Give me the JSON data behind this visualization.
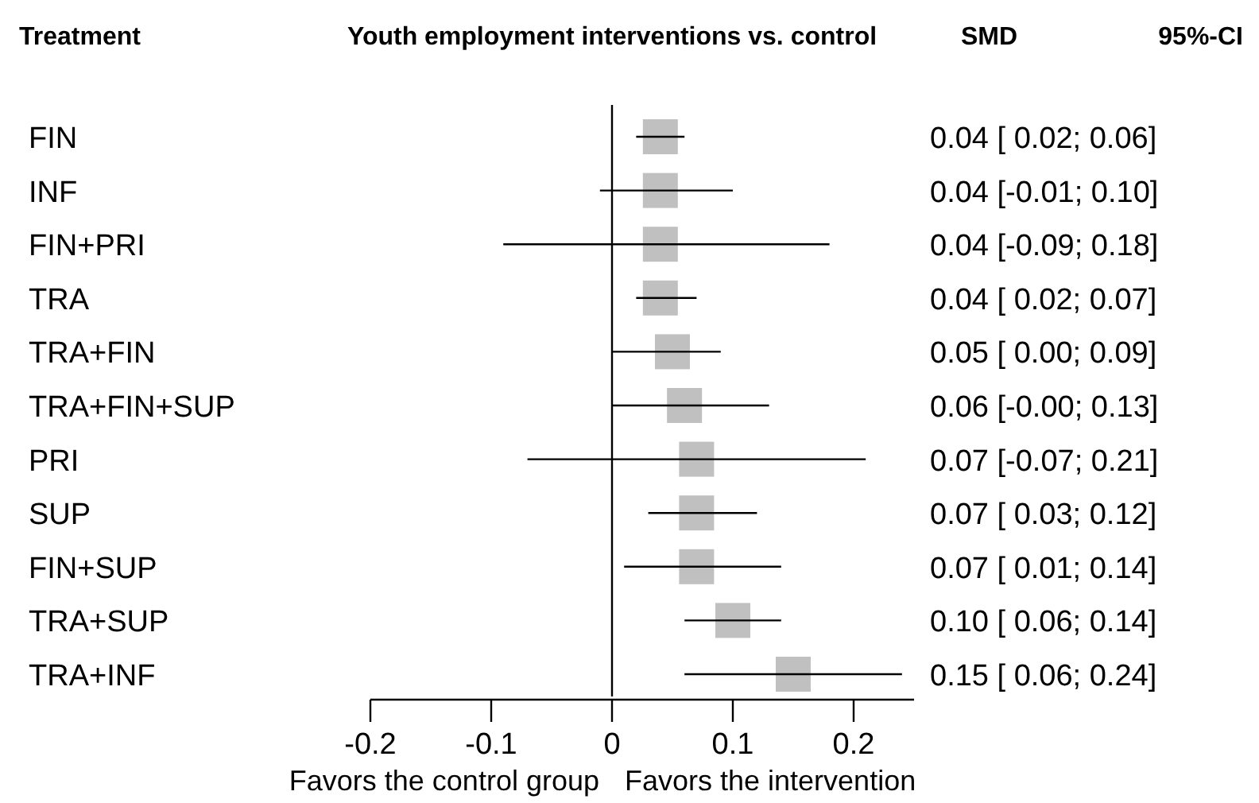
{
  "chart_data": {
    "type": "scatter",
    "orientation": "horizontal",
    "title": "Youth employment interventions vs. control",
    "categories": [
      "FIN",
      "INF",
      "FIN+PRI",
      "TRA",
      "TRA+FIN",
      "TRA+FIN+SUP",
      "PRI",
      "SUP",
      "FIN+SUP",
      "TRA+SUP",
      "TRA+INF"
    ],
    "values": [
      0.04,
      0.04,
      0.04,
      0.04,
      0.05,
      0.06,
      0.07,
      0.07,
      0.07,
      0.1,
      0.15
    ],
    "errors": [
      [
        0.02,
        0.06
      ],
      [
        -0.01,
        0.1
      ],
      [
        -0.09,
        0.18
      ],
      [
        0.02,
        0.07
      ],
      [
        0.0,
        0.09
      ],
      [
        -0.0,
        0.13
      ],
      [
        -0.07,
        0.21
      ],
      [
        0.03,
        0.12
      ],
      [
        0.01,
        0.14
      ],
      [
        0.06,
        0.14
      ],
      [
        0.06,
        0.24
      ]
    ],
    "value_labels": [
      "0.04 [ 0.02; 0.06]",
      "0.04 [-0.01; 0.10]",
      "0.04 [-0.09; 0.18]",
      "0.04 [ 0.02; 0.07]",
      "0.05 [ 0.00; 0.09]",
      "0.06 [-0.00; 0.13]",
      "0.07 [-0.07; 0.21]",
      "0.07 [ 0.03; 0.12]",
      "0.07 [ 0.01; 0.14]",
      "0.10 [ 0.06; 0.14]",
      "0.15 [ 0.06; 0.24]"
    ],
    "color": "#c0c0c0",
    "marker": "square",
    "xlim": [
      -0.2,
      0.25
    ],
    "xticks": [
      -0.2,
      -0.1,
      0,
      0.1,
      0.2
    ],
    "ref_lines": [
      {
        "axis": "x",
        "value": 0
      }
    ],
    "annotations": [
      "Treatment",
      "SMD",
      "95%-CI",
      "Favors the control group",
      "Favors the intervention"
    ]
  }
}
